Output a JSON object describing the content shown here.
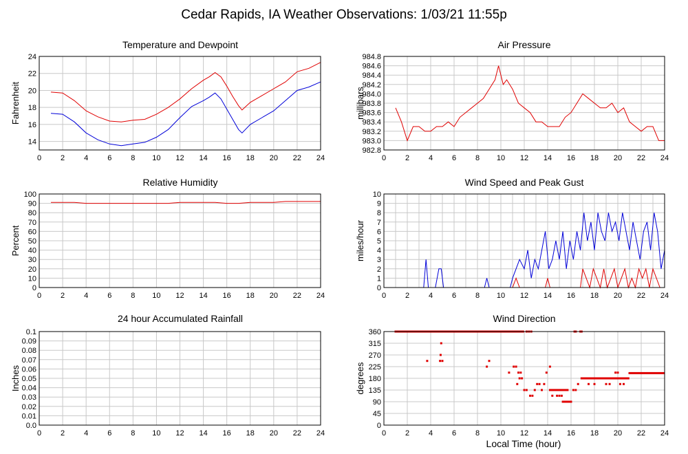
{
  "page": {
    "title": "Cedar Rapids, IA Weather Observations: 1/03/21 11:55p",
    "x_axis_label": "Local Time (hour)"
  },
  "colors": {
    "red": "#e00000",
    "blue": "#0000d8",
    "grid": "#c8c8c8"
  },
  "chart_data": [
    {
      "id": "temp",
      "type": "line",
      "title": "Temperature and Dewpoint",
      "ylabel": "Fahrenheit",
      "xlabel": "",
      "xlim": [
        0,
        24
      ],
      "ylim": [
        13,
        24
      ],
      "yticks": [
        14,
        16,
        18,
        20,
        22,
        24
      ],
      "xticks": [
        0,
        2,
        4,
        6,
        8,
        10,
        12,
        14,
        16,
        18,
        20,
        22,
        24
      ],
      "grid": true,
      "series": [
        {
          "color": "#e00000",
          "x": [
            1,
            2,
            3,
            4,
            5,
            6,
            7,
            8,
            9,
            10,
            11,
            12,
            13,
            14,
            14.5,
            15,
            15.5,
            16,
            16.5,
            17,
            17.3,
            18,
            19,
            20,
            21,
            22,
            23,
            24
          ],
          "y": [
            19.8,
            19.7,
            18.8,
            17.6,
            16.9,
            16.4,
            16.3,
            16.5,
            16.6,
            17.2,
            18.0,
            19.0,
            20.2,
            21.2,
            21.6,
            22.1,
            21.6,
            20.5,
            19.3,
            18.2,
            17.7,
            18.6,
            19.4,
            20.2,
            21.0,
            22.2,
            22.6,
            23.3
          ]
        },
        {
          "color": "#0000d8",
          "x": [
            1,
            2,
            3,
            4,
            5,
            6,
            7,
            8,
            9,
            10,
            11,
            12,
            13,
            14,
            14.5,
            15,
            15.5,
            16,
            16.5,
            17,
            17.3,
            18,
            19,
            20,
            21,
            22,
            23,
            24
          ],
          "y": [
            17.3,
            17.2,
            16.3,
            15.0,
            14.2,
            13.7,
            13.5,
            13.7,
            13.9,
            14.5,
            15.4,
            16.8,
            18.1,
            18.8,
            19.2,
            19.7,
            19.0,
            17.8,
            16.6,
            15.4,
            15.0,
            16.0,
            16.8,
            17.6,
            18.8,
            20.0,
            20.4,
            21.0
          ]
        }
      ]
    },
    {
      "id": "pressure",
      "type": "line",
      "title": "Air Pressure",
      "ylabel": "millibars",
      "xlabel": "",
      "xlim": [
        0,
        24
      ],
      "ylim": [
        982.8,
        984.8
      ],
      "yticks": [
        982.8,
        983.0,
        983.2,
        983.4,
        983.6,
        983.8,
        984.0,
        984.2,
        984.4,
        984.6,
        984.8
      ],
      "ytick_decimals": 1,
      "xticks": [
        0,
        2,
        4,
        6,
        8,
        10,
        12,
        14,
        16,
        18,
        20,
        22,
        24
      ],
      "grid": true,
      "series": [
        {
          "color": "#e00000",
          "x": [
            1,
            1.5,
            2,
            2.5,
            3,
            3.5,
            4,
            4.5,
            5,
            5.5,
            6,
            6.5,
            7,
            7.5,
            8,
            8.5,
            9,
            9.5,
            9.8,
            10.2,
            10.5,
            11,
            11.5,
            12,
            12.5,
            13,
            13.5,
            14,
            14.5,
            15,
            15.5,
            16,
            16.5,
            17,
            17.5,
            18,
            18.5,
            19,
            19.5,
            20,
            20.5,
            21,
            21.5,
            22,
            22.5,
            23,
            23.5,
            24
          ],
          "y": [
            983.7,
            983.4,
            983.0,
            983.3,
            983.3,
            983.2,
            983.2,
            983.3,
            983.3,
            983.4,
            983.3,
            983.5,
            983.6,
            983.7,
            983.8,
            983.9,
            984.1,
            984.3,
            984.6,
            984.2,
            984.3,
            984.1,
            983.8,
            983.7,
            983.6,
            983.4,
            983.4,
            983.3,
            983.3,
            983.3,
            983.5,
            983.6,
            983.8,
            984.0,
            983.9,
            983.8,
            983.7,
            983.7,
            983.8,
            983.6,
            983.7,
            983.4,
            983.3,
            983.2,
            983.3,
            983.3,
            983.0,
            983.0
          ]
        }
      ]
    },
    {
      "id": "rh",
      "type": "line",
      "title": "Relative Humidity",
      "ylabel": "Percent",
      "xlabel": "",
      "xlim": [
        0,
        24
      ],
      "ylim": [
        0,
        100
      ],
      "yticks": [
        0,
        10,
        20,
        30,
        40,
        50,
        60,
        70,
        80,
        90,
        100
      ],
      "xticks": [
        0,
        2,
        4,
        6,
        8,
        10,
        12,
        14,
        16,
        18,
        20,
        22,
        24
      ],
      "grid": true,
      "series": [
        {
          "color": "#e00000",
          "x": [
            1,
            2,
            3,
            4,
            5,
            6,
            7,
            8,
            9,
            10,
            11,
            12,
            13,
            14,
            15,
            16,
            17,
            18,
            19,
            20,
            21,
            22,
            23,
            24
          ],
          "y": [
            91,
            91,
            91,
            90,
            90,
            90,
            90,
            90,
            90,
            90,
            90,
            91,
            91,
            91,
            91,
            90,
            90,
            91,
            91,
            91,
            92,
            92,
            92,
            92
          ]
        }
      ]
    },
    {
      "id": "wind",
      "type": "line",
      "title": "Wind Speed and Peak Gust",
      "ylabel": "miles/hour",
      "xlabel": "",
      "xlim": [
        0,
        24
      ],
      "ylim": [
        0,
        10
      ],
      "yticks": [
        0,
        1,
        2,
        3,
        4,
        5,
        6,
        7,
        8,
        9,
        10
      ],
      "xticks": [
        0,
        2,
        4,
        6,
        8,
        10,
        12,
        14,
        16,
        18,
        20,
        22,
        24
      ],
      "grid": true,
      "series": [
        {
          "color": "#0000d8",
          "x": [
            1,
            3.4,
            3.6,
            3.8,
            4.4,
            4.7,
            4.9,
            5.1,
            8.6,
            8.8,
            9.0,
            10.8,
            11.0,
            11.3,
            11.6,
            12.0,
            12.3,
            12.6,
            12.9,
            13.2,
            13.5,
            13.8,
            14.1,
            14.4,
            14.7,
            15.0,
            15.3,
            15.6,
            15.9,
            16.2,
            16.5,
            16.8,
            17.1,
            17.4,
            17.7,
            18.0,
            18.3,
            18.6,
            18.9,
            19.2,
            19.5,
            19.8,
            20.1,
            20.4,
            20.7,
            21.0,
            21.3,
            21.6,
            21.9,
            22.2,
            22.5,
            22.8,
            23.1,
            23.4,
            23.7,
            24.0
          ],
          "y": [
            0,
            0,
            3,
            0,
            0,
            2,
            2,
            0,
            0,
            1,
            0,
            0,
            1,
            2,
            3,
            2,
            4,
            1,
            3,
            2,
            4,
            6,
            2,
            3,
            5,
            3,
            6,
            2,
            5,
            3,
            6,
            4,
            8,
            5,
            7,
            4,
            8,
            6,
            5,
            8,
            6,
            7,
            5,
            8,
            6,
            4,
            7,
            5,
            3,
            6,
            7,
            4,
            8,
            6,
            2,
            4
          ]
        },
        {
          "color": "#e00000",
          "x": [
            1,
            11.0,
            11.3,
            11.6,
            13.8,
            14.0,
            14.2,
            14.5,
            16.8,
            17.0,
            17.3,
            17.6,
            17.9,
            18.2,
            18.5,
            18.8,
            19.1,
            19.4,
            19.7,
            20.0,
            20.3,
            20.6,
            20.9,
            21.2,
            21.5,
            21.8,
            22.1,
            22.4,
            22.7,
            23.0,
            23.3,
            23.6,
            24.0
          ],
          "y": [
            0,
            0,
            1,
            0,
            0,
            1,
            0,
            0,
            0,
            2,
            1,
            0,
            2,
            1,
            0,
            2,
            0,
            1,
            2,
            0,
            1,
            2,
            0,
            1,
            0,
            2,
            1,
            2,
            0,
            2,
            1,
            0,
            0
          ]
        }
      ]
    },
    {
      "id": "rain",
      "type": "line",
      "title": "24 hour Accumulated Rainfall",
      "ylabel": "Inches",
      "xlabel": "",
      "xlim": [
        0,
        24
      ],
      "ylim": [
        0,
        0.1
      ],
      "yticks": [
        0.0,
        0.01,
        0.02,
        0.03,
        0.04,
        0.05,
        0.06,
        0.07,
        0.08,
        0.09,
        0.1
      ],
      "ytick_labels": [
        "0.0",
        "0.01",
        "0.02",
        "0.03",
        "0.04",
        "0.05",
        "0.06",
        "0.07",
        "0.08",
        "0.09",
        "0.1"
      ],
      "xticks": [
        0,
        2,
        4,
        6,
        8,
        10,
        12,
        14,
        16,
        18,
        20,
        22,
        24
      ],
      "grid": true,
      "series": [
        {
          "color": "#e00000",
          "x": [
            1,
            24
          ],
          "y": [
            0,
            0
          ]
        }
      ]
    },
    {
      "id": "wdir",
      "type": "scatter",
      "title": "Wind Direction",
      "ylabel": "degrees",
      "xlabel": "Local Time (hour)",
      "xlim": [
        0,
        24
      ],
      "ylim": [
        0,
        360
      ],
      "yticks": [
        0,
        45,
        90,
        135,
        180,
        225,
        270,
        315,
        360
      ],
      "xticks": [
        0,
        2,
        4,
        6,
        8,
        10,
        12,
        14,
        16,
        18,
        20,
        22,
        24
      ],
      "grid": true,
      "series": [
        {
          "color": "#e00000",
          "bands": [
            {
              "y": 360,
              "from": 1.0,
              "to": 11.9,
              "step": 0.1
            },
            {
              "y": 360,
              "from": 12.2,
              "to": 12.6,
              "step": 0.2
            },
            {
              "y": 360,
              "from": 16.3,
              "to": 16.4,
              "step": 0.1
            },
            {
              "y": 360,
              "from": 16.8,
              "to": 16.9,
              "step": 0.1
            },
            {
              "y": 180,
              "from": 16.9,
              "to": 20.9,
              "step": 0.1
            },
            {
              "y": 200,
              "from": 21.0,
              "to": 23.9,
              "step": 0.1
            },
            {
              "y": 135,
              "from": 14.2,
              "to": 15.8,
              "step": 0.15
            },
            {
              "y": 90,
              "from": 15.3,
              "to": 16.0,
              "step": 0.1
            }
          ],
          "x": [
            3.7,
            4.8,
            4.85,
            4.9,
            5.0,
            8.8,
            9.0,
            10.7,
            11.1,
            11.3,
            11.5,
            11.7,
            11.4,
            11.6,
            11.8,
            12.0,
            12.2,
            12.5,
            12.7,
            12.9,
            13.1,
            13.3,
            13.5,
            13.7,
            13.9,
            14.2,
            14.4,
            14.6,
            14.8,
            15.0,
            15.2,
            16.2,
            16.4,
            16.6,
            17.5,
            18.0,
            18.5,
            19.0,
            19.3,
            19.6,
            20.2,
            20.5,
            20.8,
            18.2,
            18.7,
            19.8,
            20.0
          ],
          "y": [
            247,
            247,
            270,
            315,
            247,
            225,
            247,
            202,
            225,
            225,
            202,
            202,
            158,
            180,
            180,
            135,
            135,
            113,
            113,
            135,
            158,
            158,
            135,
            158,
            202,
            225,
            113,
            135,
            113,
            113,
            113,
            135,
            135,
            158,
            158,
            158,
            180,
            158,
            158,
            180,
            158,
            158,
            180,
            180,
            180,
            202,
            202
          ]
        }
      ]
    }
  ]
}
